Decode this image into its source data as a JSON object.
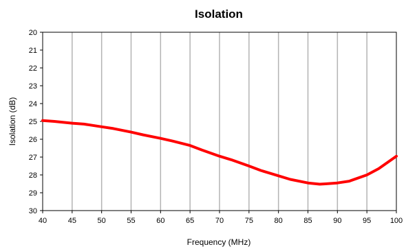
{
  "chart_data": {
    "type": "line",
    "title": "Isolation",
    "xlabel": "Frequency (MHz)",
    "ylabel": "Isolation (dB)",
    "xlim": [
      40,
      100
    ],
    "ylim": [
      20,
      30
    ],
    "y_inverted": true,
    "grid": "vertical",
    "x_ticks": [
      "40",
      "45",
      "50",
      "55",
      "60",
      "65",
      "70",
      "75",
      "80",
      "85",
      "90",
      "95",
      "100"
    ],
    "y_ticks": [
      "20",
      "21",
      "22",
      "23",
      "24",
      "25",
      "26",
      "27",
      "28",
      "29",
      "30"
    ],
    "series": [
      {
        "color": "#ff0000",
        "x": [
          40,
          42,
          45,
          47,
          50,
          52,
          55,
          57,
          60,
          62,
          65,
          67,
          70,
          72,
          75,
          77,
          80,
          82,
          85,
          87,
          88,
          90,
          92,
          95,
          97,
          100
        ],
        "y": [
          24.95,
          25.0,
          25.1,
          25.15,
          25.3,
          25.4,
          25.6,
          25.75,
          25.95,
          26.1,
          26.35,
          26.6,
          26.95,
          27.15,
          27.5,
          27.75,
          28.05,
          28.25,
          28.45,
          28.52,
          28.5,
          28.45,
          28.35,
          28.0,
          27.65,
          26.95
        ]
      }
    ]
  }
}
